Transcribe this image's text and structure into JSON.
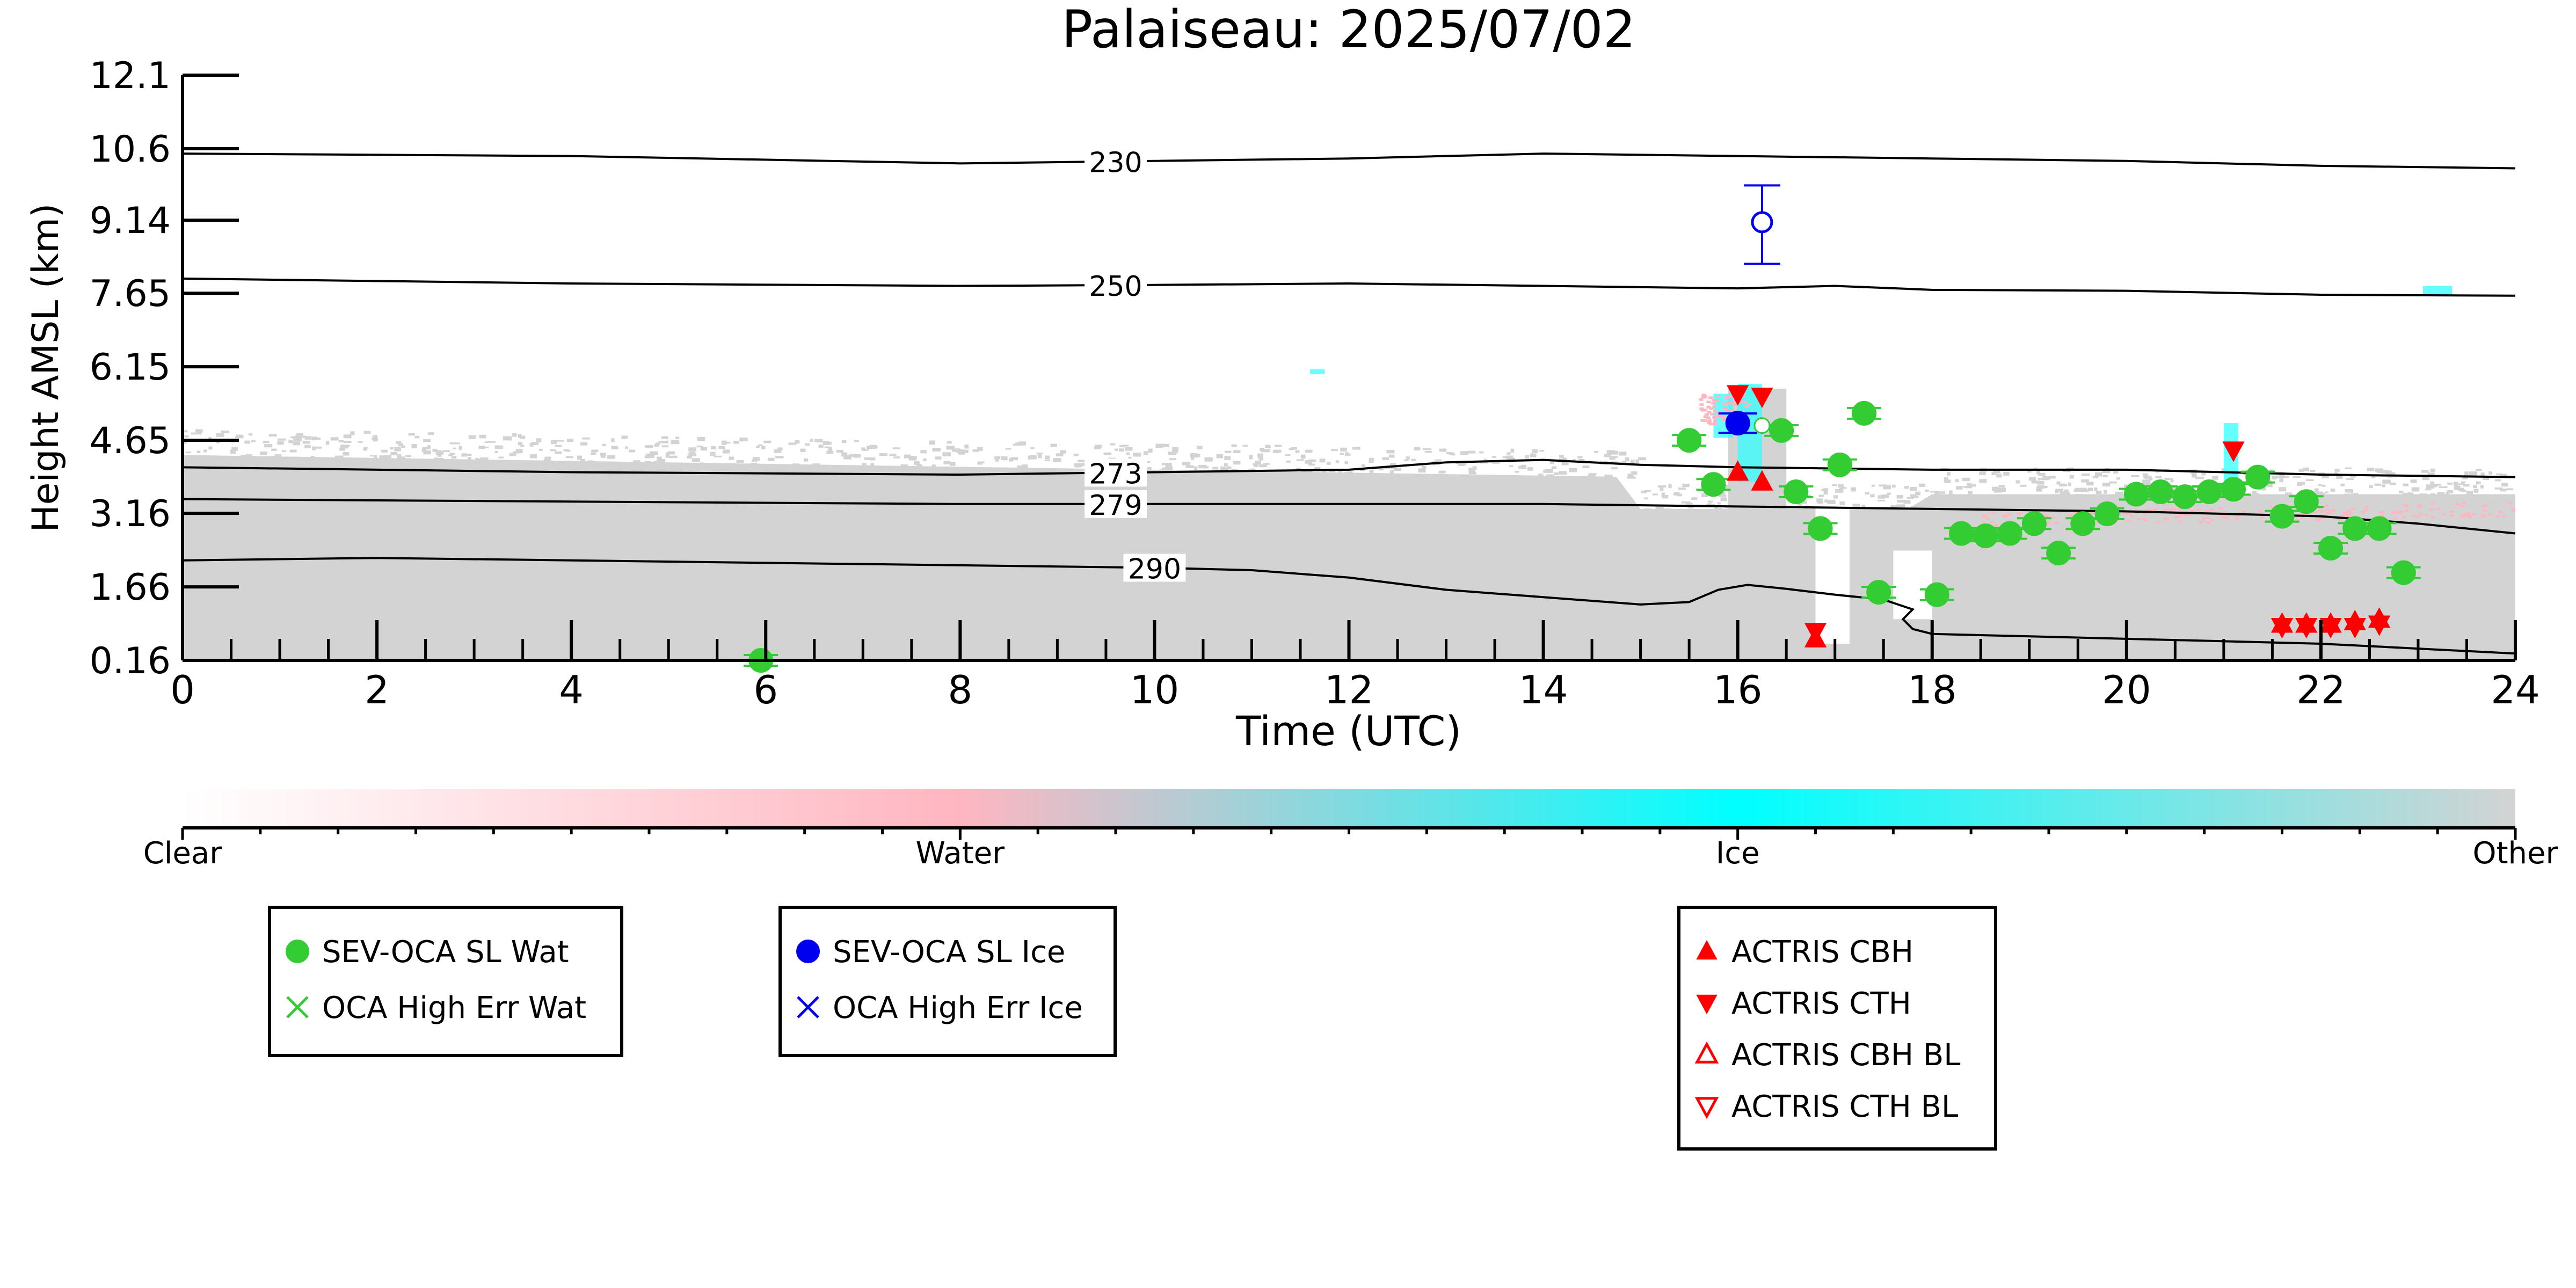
{
  "chart_data": {
    "type": "scatter",
    "title": "Palaiseau: 2025/07/02",
    "xlabel": "Time (UTC)",
    "ylabel": "Height AMSL (km)",
    "xlim": [
      0,
      24
    ],
    "ylim": [
      0.16,
      12.1
    ],
    "xticks": [
      0,
      2,
      4,
      6,
      8,
      10,
      12,
      14,
      16,
      18,
      20,
      22,
      24
    ],
    "yticks": [
      0.16,
      1.66,
      3.16,
      4.65,
      6.15,
      7.65,
      9.14,
      10.6,
      12.1
    ],
    "ytick_labels": [
      "0.16",
      "1.66",
      "3.16",
      "4.65",
      "6.15",
      "7.65",
      "9.14",
      "10.6",
      "12.1"
    ],
    "grid": false,
    "background_classification": {
      "description_levels": [
        "Clear",
        "Water",
        "Ice",
        "Other"
      ],
      "colors": {
        "Clear": "#ffffff",
        "Water": "#ffb6c1",
        "Ice": "#00ffff",
        "Other": "#d3d3d3"
      }
    },
    "colorbar": {
      "labels": [
        "Clear",
        "Water",
        "Ice",
        "Other"
      ],
      "stops": [
        "#ffffff",
        "#ffb6c1",
        "#00ffff",
        "#d3d3d3"
      ]
    },
    "contours": [
      {
        "label": "230",
        "label_x": 9.6,
        "points": [
          [
            0,
            10.5
          ],
          [
            4,
            10.45
          ],
          [
            8,
            10.3
          ],
          [
            10,
            10.35
          ],
          [
            12,
            10.4
          ],
          [
            14,
            10.5
          ],
          [
            16,
            10.45
          ],
          [
            18,
            10.4
          ],
          [
            20,
            10.35
          ],
          [
            22,
            10.25
          ],
          [
            24,
            10.2
          ]
        ]
      },
      {
        "label": "250",
        "label_x": 9.6,
        "points": [
          [
            0,
            7.95
          ],
          [
            4,
            7.85
          ],
          [
            8,
            7.8
          ],
          [
            10,
            7.82
          ],
          [
            12,
            7.85
          ],
          [
            14,
            7.8
          ],
          [
            16,
            7.75
          ],
          [
            17,
            7.8
          ],
          [
            18,
            7.72
          ],
          [
            20,
            7.7
          ],
          [
            22,
            7.62
          ],
          [
            24,
            7.6
          ]
        ]
      },
      {
        "label": "273",
        "label_x": 9.6,
        "points": [
          [
            0,
            4.1
          ],
          [
            4,
            4.0
          ],
          [
            8,
            3.95
          ],
          [
            10,
            4.0
          ],
          [
            12,
            4.05
          ],
          [
            13,
            4.2
          ],
          [
            14,
            4.25
          ],
          [
            15,
            4.15
          ],
          [
            16,
            4.1
          ],
          [
            18,
            4.05
          ],
          [
            20,
            4.05
          ],
          [
            22,
            3.95
          ],
          [
            24,
            3.9
          ]
        ]
      },
      {
        "label": "279",
        "label_x": 9.6,
        "points": [
          [
            0,
            3.45
          ],
          [
            4,
            3.4
          ],
          [
            8,
            3.35
          ],
          [
            10,
            3.35
          ],
          [
            12,
            3.35
          ],
          [
            14,
            3.35
          ],
          [
            16,
            3.3
          ],
          [
            18,
            3.25
          ],
          [
            20,
            3.2
          ],
          [
            22,
            3.1
          ],
          [
            23,
            2.95
          ],
          [
            24,
            2.75
          ]
        ]
      },
      {
        "label": "290",
        "label_x": 10.0,
        "points": [
          [
            0,
            2.2
          ],
          [
            2,
            2.25
          ],
          [
            4,
            2.2
          ],
          [
            6,
            2.15
          ],
          [
            8,
            2.1
          ],
          [
            10,
            2.05
          ],
          [
            11,
            2.0
          ],
          [
            12,
            1.85
          ],
          [
            13,
            1.6
          ],
          [
            14,
            1.45
          ],
          [
            15,
            1.3
          ],
          [
            15.5,
            1.35
          ],
          [
            15.8,
            1.6
          ],
          [
            16.1,
            1.7
          ],
          [
            16.5,
            1.62
          ],
          [
            17,
            1.5
          ],
          [
            17.5,
            1.4
          ],
          [
            17.8,
            1.2
          ],
          [
            17.7,
            1.0
          ],
          [
            17.8,
            0.8
          ],
          [
            18,
            0.7
          ],
          [
            20,
            0.6
          ],
          [
            22,
            0.5
          ],
          [
            24,
            0.3
          ]
        ]
      }
    ],
    "series": [
      {
        "name": "SEV-OCA SL Wat",
        "marker": "filled-circle",
        "color": "#33cc33",
        "points": [
          [
            5.95,
            0.16
          ],
          [
            15.5,
            4.65
          ],
          [
            15.75,
            3.75
          ],
          [
            16.45,
            4.85
          ],
          [
            16.6,
            3.6
          ],
          [
            16.85,
            2.85
          ],
          [
            17.05,
            4.15
          ],
          [
            17.3,
            5.2
          ],
          [
            17.45,
            1.55
          ],
          [
            18.05,
            1.5
          ],
          [
            18.3,
            2.75
          ],
          [
            18.55,
            2.7
          ],
          [
            18.8,
            2.75
          ],
          [
            19.05,
            2.95
          ],
          [
            19.3,
            2.35
          ],
          [
            19.55,
            2.95
          ],
          [
            19.8,
            3.15
          ],
          [
            20.1,
            3.55
          ],
          [
            20.35,
            3.6
          ],
          [
            20.6,
            3.5
          ],
          [
            20.85,
            3.6
          ],
          [
            21.1,
            3.65
          ],
          [
            21.35,
            3.9
          ],
          [
            21.6,
            3.1
          ],
          [
            21.85,
            3.4
          ],
          [
            22.1,
            2.45
          ],
          [
            22.35,
            2.85
          ],
          [
            22.6,
            2.85
          ],
          [
            22.85,
            1.95
          ]
        ]
      },
      {
        "name": "OCA High Err Wat",
        "marker": "x",
        "color": "#33cc33",
        "points": []
      },
      {
        "name": "SEV-OCA SL Ice",
        "marker": "filled-circle",
        "color": "#0000ee",
        "points": [
          [
            16.0,
            5.0
          ]
        ]
      },
      {
        "name": "OCA High Err Ice",
        "marker": "x",
        "color": "#0000ee",
        "points": []
      },
      {
        "name": "ACTRIS CBH",
        "marker": "triangle-up",
        "color": "#ff0000",
        "points": [
          [
            16.0,
            4.0
          ],
          [
            16.25,
            3.8
          ],
          [
            16.8,
            0.6
          ],
          [
            21.6,
            0.9
          ],
          [
            21.85,
            0.9
          ],
          [
            22.1,
            0.9
          ],
          [
            22.35,
            0.95
          ],
          [
            22.6,
            1.0
          ]
        ]
      },
      {
        "name": "ACTRIS CTH",
        "marker": "triangle-down",
        "color": "#ff0000",
        "points": [
          [
            16.0,
            5.6
          ],
          [
            16.25,
            5.55
          ],
          [
            16.8,
            0.75
          ],
          [
            21.1,
            4.45
          ],
          [
            21.6,
            0.85
          ],
          [
            21.85,
            0.85
          ],
          [
            22.1,
            0.85
          ],
          [
            22.35,
            0.85
          ],
          [
            22.6,
            0.9
          ]
        ]
      },
      {
        "name": "ACTRIS CBH BL",
        "marker": "triangle-up-open",
        "color": "#ff0000",
        "points": []
      },
      {
        "name": "ACTRIS CTH BL",
        "marker": "triangle-down-open",
        "color": "#ff0000",
        "points": []
      }
    ],
    "open_points": [
      {
        "x": 16.25,
        "y": 9.1,
        "yerr_low": 8.25,
        "yerr_high": 9.85,
        "color": "#0000ee"
      },
      {
        "x": 16.25,
        "y": 4.95,
        "color": "#ffffff"
      }
    ],
    "legends": [
      {
        "placement": "bottom-left",
        "entries": [
          "SEV-OCA SL Wat",
          "OCA High Err Wat"
        ]
      },
      {
        "placement": "bottom-center-left",
        "entries": [
          "SEV-OCA SL Ice",
          "OCA High Err Ice"
        ]
      },
      {
        "placement": "bottom-center-right",
        "entries": [
          "ACTRIS CBH",
          "ACTRIS CTH",
          "ACTRIS CBH BL",
          "ACTRIS CTH BL"
        ]
      }
    ]
  }
}
